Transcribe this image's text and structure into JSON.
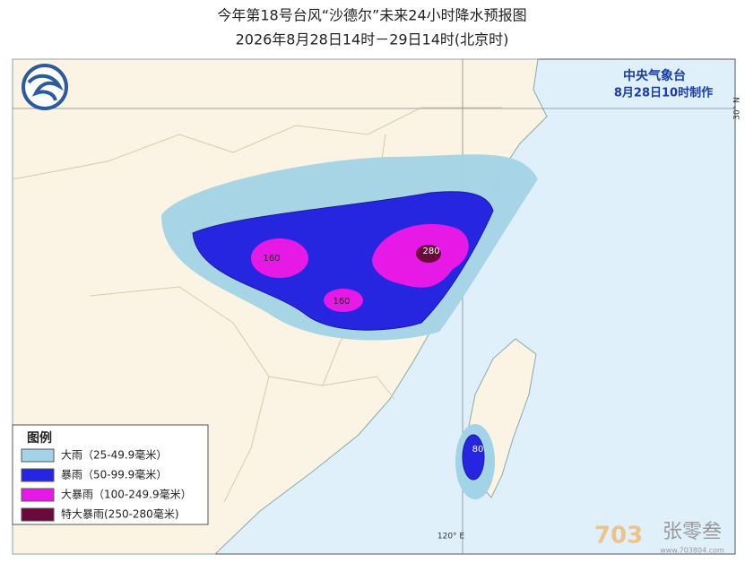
{
  "header": {
    "title": "今年第18号台风“沙德尔”未来24小时降水预报图",
    "subtitle": "2026年8月28日14时－29日14时(北京时)"
  },
  "agency": {
    "name": "中央气象台",
    "issued": "8月28日10时制作"
  },
  "axes": {
    "longitude": "120° E",
    "latitude": "30° N"
  },
  "contour_labels": [
    "160",
    "160",
    "280",
    "80"
  ],
  "legend": {
    "title": "图例",
    "items": [
      {
        "label": "大雨（25-49.9毫米）",
        "color": "#a3d3e6"
      },
      {
        "label": "暴雨（50-99.9毫米）",
        "color": "#2626e0"
      },
      {
        "label": "大暴雨（100-249.9毫米）",
        "color": "#e619e6"
      },
      {
        "label": "特大暴雨(250-280毫米)",
        "color": "#6b0a3a"
      }
    ]
  },
  "watermark": {
    "brand": "张零叁",
    "site": "www.703804.com"
  }
}
